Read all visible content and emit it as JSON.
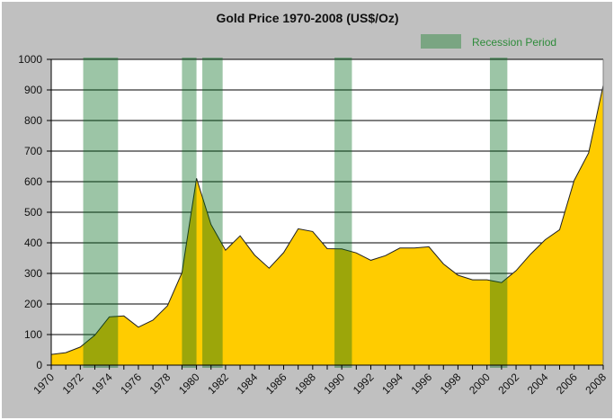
{
  "chart_data": {
    "type": "area",
    "title": "Gold Price 1970-2008 (US$/Oz)",
    "xlabel": "",
    "ylabel": "",
    "x": [
      1970,
      1971,
      1972,
      1973,
      1974,
      1975,
      1976,
      1977,
      1978,
      1979,
      1980,
      1981,
      1982,
      1983,
      1984,
      1985,
      1986,
      1987,
      1988,
      1989,
      1990,
      1991,
      1992,
      1993,
      1994,
      1995,
      1996,
      1997,
      1998,
      1999,
      2000,
      2001,
      2002,
      2003,
      2004,
      2005,
      2006,
      2007,
      2008
    ],
    "series": [
      {
        "values": [
          35,
          41,
          59,
          98,
          158,
          161,
          124,
          147,
          194,
          302,
          611,
          460,
          376,
          423,
          360,
          317,
          368,
          446,
          437,
          381,
          380,
          367,
          343,
          358,
          383,
          383,
          387,
          331,
          294,
          279,
          279,
          270,
          309,
          363,
          410,
          443,
          604,
          694,
          915
        ]
      }
    ],
    "ylim": [
      0,
      1000
    ],
    "yticks": [
      0,
      100,
      200,
      300,
      400,
      500,
      600,
      700,
      800,
      900,
      1000
    ],
    "xtick_labels": [
      "1970",
      "1972",
      "1974",
      "1976",
      "1978",
      "1980",
      "1982",
      "1984",
      "1986",
      "1988",
      "1990",
      "1992",
      "1994",
      "1996",
      "1998",
      "2000",
      "2002",
      "2004",
      "2006",
      "2008"
    ],
    "grid": "horizontal",
    "legend": {
      "label": "Recession Period",
      "placement": "top-right"
    },
    "recessions": [
      [
        1972.2,
        1974.6
      ],
      [
        1979.0,
        1980.0
      ],
      [
        1980.4,
        1981.8
      ],
      [
        1989.5,
        1990.7
      ],
      [
        2000.2,
        2001.4
      ]
    ],
    "colors": {
      "area": "#ffcc00",
      "recession": "#006a1b",
      "legend_text": "#2e8b3a",
      "background": "#c0c0c0",
      "plot_bg": "#ffffff"
    }
  }
}
